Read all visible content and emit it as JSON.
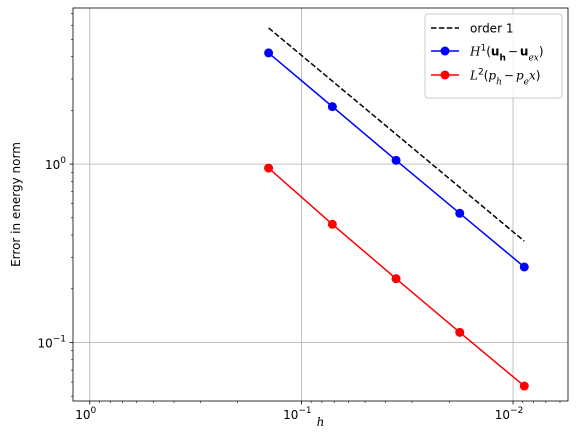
{
  "chart_data": {
    "type": "line",
    "title": "",
    "xlabel": "h",
    "ylabel": "Error in energy norm",
    "x_scale": "log",
    "y_scale": "log",
    "x_inverted": true,
    "xlim": [
      1.2,
      0.0055
    ],
    "ylim": [
      0.047,
      7.5
    ],
    "grid": true,
    "legend_position": "top-right",
    "x_ticks": [
      {
        "value": 1,
        "mantissa": "10",
        "exponent": "0"
      },
      {
        "value": 0.1,
        "mantissa": "10",
        "exponent": "−1"
      },
      {
        "value": 0.01,
        "mantissa": "10",
        "exponent": "−2"
      }
    ],
    "y_ticks": [
      {
        "value": 1,
        "mantissa": "10",
        "exponent": "0"
      },
      {
        "value": 0.1,
        "mantissa": "10",
        "exponent": "−1"
      }
    ],
    "series": [
      {
        "name": "order 1",
        "color": "#000000",
        "style": "dashed",
        "marker": "none",
        "x": [
          0.1429,
          0.00885
        ],
        "y": [
          5.8,
          0.37
        ]
      },
      {
        "name": "H1(uh − uex)",
        "color": "#0000ff",
        "style": "solid",
        "marker": "circle",
        "x": [
          0.1429,
          0.0714,
          0.0357,
          0.01786,
          0.00885
        ],
        "y": [
          4.2,
          2.1,
          1.05,
          0.53,
          0.265
        ]
      },
      {
        "name": "L2(ph − pe x)",
        "color": "#ff0000",
        "style": "solid",
        "marker": "circle",
        "x": [
          0.1429,
          0.0714,
          0.0357,
          0.01786,
          0.00885
        ],
        "y": [
          0.95,
          0.46,
          0.228,
          0.114,
          0.057
        ]
      }
    ],
    "legend": [
      {
        "label": "order 1"
      },
      {
        "func": "H",
        "sup": "1",
        "open": "(",
        "a": "u",
        "a_sub": "h",
        "minus": "−",
        "b": "u",
        "b_sub": "ex",
        "close": ")"
      },
      {
        "func": "L",
        "sup": "2",
        "open": "(",
        "a": "p",
        "a_sub": "h",
        "minus": "−",
        "b": "p",
        "b_sub": "e",
        "tail": "x",
        "close": ")"
      }
    ]
  }
}
